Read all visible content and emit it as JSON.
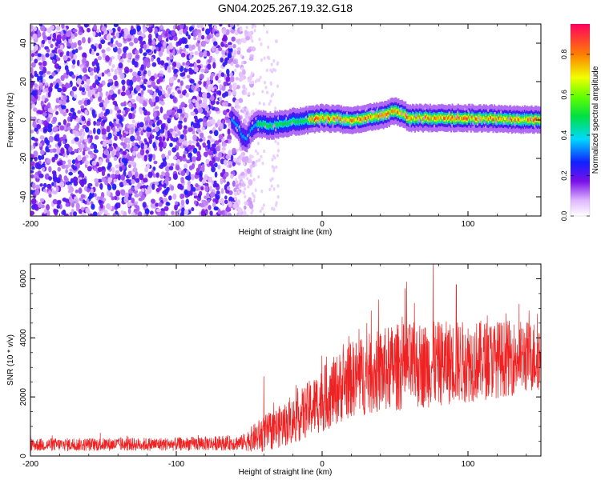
{
  "title": "GN04.2025.267.19.32.G18",
  "chart_data": [
    {
      "type": "heatmap",
      "xlabel": "Height of straight line (km)",
      "ylabel": "Frequency (Hz)",
      "xlim": [
        -200,
        150
      ],
      "ylim": [
        -50,
        50
      ],
      "x_ticks": [
        -200,
        -100,
        0,
        100
      ],
      "x_tick_labels": [
        "-200",
        "-100",
        "0",
        "100"
      ],
      "y_ticks": [
        -40,
        -20,
        0,
        20,
        40
      ],
      "y_tick_labels": [
        "-40",
        "-20",
        "0",
        "20",
        "40"
      ],
      "colorbar": {
        "label": "Normalized spectral amplitude",
        "range": [
          0,
          0.95
        ],
        "ticks": [
          0.0,
          0.2,
          0.4,
          0.6,
          0.8
        ],
        "tick_labels": [
          "0.0",
          "0.2",
          "0.4",
          "0.6",
          "0.8"
        ]
      },
      "noise_region": [
        -200,
        -55
      ],
      "signal_start_km": -62,
      "signal_freq_profile": [
        {
          "x": -62,
          "f": 0
        },
        {
          "x": -58,
          "f": -3
        },
        {
          "x": -55,
          "f": -8
        },
        {
          "x": -52,
          "f": -10
        },
        {
          "x": -48,
          "f": -4
        },
        {
          "x": -44,
          "f": -2
        },
        {
          "x": -35,
          "f": -3
        },
        {
          "x": -20,
          "f": -1
        },
        {
          "x": 0,
          "f": 1
        },
        {
          "x": 20,
          "f": 0
        },
        {
          "x": 40,
          "f": 2
        },
        {
          "x": 50,
          "f": 5
        },
        {
          "x": 60,
          "f": 1
        },
        {
          "x": 100,
          "f": 1
        },
        {
          "x": 150,
          "f": 0
        }
      ]
    },
    {
      "type": "line",
      "xlabel": "Height of straight line (km)",
      "ylabel": "SNR (10 * v/v)",
      "xlim": [
        -200,
        150
      ],
      "ylim": [
        0,
        6500
      ],
      "x_ticks": [
        -200,
        -100,
        0,
        100
      ],
      "x_tick_labels": [
        "-200",
        "-100",
        "0",
        "100"
      ],
      "y_ticks": [
        0,
        2000,
        4000,
        6000
      ],
      "y_tick_labels": [
        "0",
        "2000",
        "4000",
        "6000"
      ],
      "color": "#ee2222",
      "envelope": [
        {
          "x": -200,
          "base": 380,
          "spread": 220
        },
        {
          "x": -100,
          "base": 400,
          "spread": 230
        },
        {
          "x": -55,
          "base": 450,
          "spread": 260
        },
        {
          "x": -42,
          "base": 700,
          "spread": 600
        },
        {
          "x": -20,
          "base": 1200,
          "spread": 800
        },
        {
          "x": 0,
          "base": 1900,
          "spread": 1100
        },
        {
          "x": 20,
          "base": 2600,
          "spread": 1300
        },
        {
          "x": 50,
          "base": 3000,
          "spread": 1500
        },
        {
          "x": 100,
          "base": 3200,
          "spread": 1400
        },
        {
          "x": 150,
          "base": 3400,
          "spread": 1200
        }
      ],
      "peaks": [
        {
          "x": -40,
          "y": 2700
        },
        {
          "x": 58,
          "y": 5900
        },
        {
          "x": 76,
          "y": 6500
        },
        {
          "x": 92,
          "y": 5800
        }
      ]
    }
  ]
}
